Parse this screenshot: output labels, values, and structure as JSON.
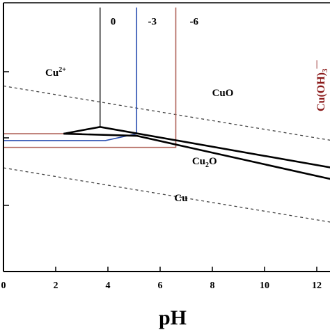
{
  "chart_data": {
    "type": "line",
    "title": "",
    "xlabel": "pH",
    "ylabel": "",
    "xlim": [
      0,
      12.6
    ],
    "x_ticks": [
      "0",
      "2",
      "4",
      "6",
      "8",
      "10",
      "12"
    ],
    "colors": {
      "conc_0": "#333333",
      "conc_-3": "#2b4fb0",
      "conc_-6": "#b0645a",
      "water_lines": "#444444",
      "side_label": "#8b1a1a"
    },
    "regions": [
      {
        "id": "cu2",
        "label": "Cu",
        "sup": "2+",
        "x": 2.0,
        "y": 1.9
      },
      {
        "id": "cuo",
        "label": "CuO",
        "x": 8.4,
        "y": 1.6
      },
      {
        "id": "cu2o",
        "label": "Cu",
        "sub": "2",
        "label_tail": "O",
        "x": 7.7,
        "y": 0.6
      },
      {
        "id": "cu",
        "label": "Cu",
        "x": 6.8,
        "y": 0.06
      }
    ],
    "concentration_labels": [
      {
        "text": "0",
        "x": 4.2,
        "y": 2.65
      },
      {
        "text": "-3",
        "x": 5.7,
        "y": 2.65
      },
      {
        "text": "-6",
        "x": 7.3,
        "y": 2.65
      }
    ],
    "side_label": {
      "text": "Cu(OH)",
      "sub": "3",
      "sup": "—"
    },
    "series": [
      {
        "key": "water_upper",
        "style": "dashed",
        "x": [
          0,
          12.6
        ],
        "y": [
          1.75,
          0.95
        ]
      },
      {
        "key": "water_lower",
        "style": "dashed",
        "x": [
          0,
          12.6
        ],
        "y": [
          0.55,
          -0.25
        ]
      },
      {
        "key": "conc_0",
        "x": [
          3.7,
          3.7
        ],
        "y": [
          2.9,
          1.15
        ]
      },
      {
        "key": "conc_-3",
        "x": [
          0,
          3.9,
          5.1,
          5.1
        ],
        "y": [
          0.95,
          0.95,
          1.05,
          2.9
        ]
      },
      {
        "key": "conc_-6",
        "x": [
          0,
          6.6,
          6.6
        ],
        "y": [
          0.85,
          0.85,
          2.9
        ]
      },
      {
        "key": "conc_-6",
        "x": [
          0,
          3.0
        ],
        "y": [
          1.05,
          1.05
        ]
      },
      {
        "key": "cu2o_parallelogram",
        "x": [
          2.3,
          3.7,
          12.6,
          12.6,
          5.1,
          2.3
        ],
        "y": [
          1.05,
          1.15,
          0.55,
          0.38,
          1.02,
          1.05
        ]
      }
    ]
  }
}
